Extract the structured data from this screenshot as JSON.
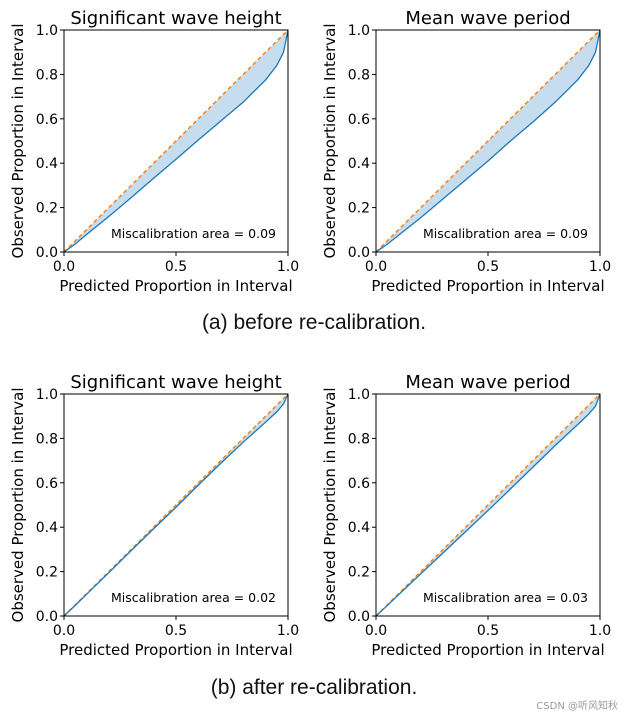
{
  "figure": {
    "caption_top": "(a) before re-calibration.",
    "caption_bottom": "(b) after re-calibration.",
    "watermark": "CSDN @听风知秋"
  },
  "colors": {
    "curve": "#1f77b4",
    "fill": "#c6dcef",
    "ideal": "#ff7f0e"
  },
  "chart_data": [
    {
      "type": "area",
      "title": "Significant wave height",
      "xlabel": "Predicted Proportion in Interval",
      "ylabel": "Observed Proportion in Interval",
      "xlim": [
        0,
        1
      ],
      "ylim": [
        0,
        1
      ],
      "xticks": [
        "0.0",
        "0.5",
        "1.0"
      ],
      "yticks": [
        "0.0",
        "0.2",
        "0.4",
        "0.6",
        "0.8",
        "1.0"
      ],
      "annotation": "Miscalibration area = 0.09",
      "ideal": {
        "name": "ideal",
        "x": [
          0,
          1
        ],
        "y": [
          0,
          1
        ]
      },
      "series": [
        {
          "name": "observed",
          "x": [
            0,
            0.05,
            0.1,
            0.2,
            0.3,
            0.4,
            0.5,
            0.6,
            0.7,
            0.8,
            0.9,
            0.95,
            0.98,
            1.0
          ],
          "y": [
            0,
            0.036,
            0.078,
            0.16,
            0.245,
            0.332,
            0.418,
            0.505,
            0.59,
            0.675,
            0.775,
            0.84,
            0.9,
            1.0
          ]
        }
      ]
    },
    {
      "type": "area",
      "title": "Mean wave period",
      "xlabel": "Predicted Proportion in Interval",
      "ylabel": "Observed Proportion in Interval",
      "xlim": [
        0,
        1
      ],
      "ylim": [
        0,
        1
      ],
      "xticks": [
        "0.0",
        "0.5",
        "1.0"
      ],
      "yticks": [
        "0.0",
        "0.2",
        "0.4",
        "0.6",
        "0.8",
        "1.0"
      ],
      "annotation": "Miscalibration area = 0.09",
      "ideal": {
        "name": "ideal",
        "x": [
          0,
          1
        ],
        "y": [
          0,
          1
        ]
      },
      "series": [
        {
          "name": "observed",
          "x": [
            0,
            0.05,
            0.1,
            0.2,
            0.3,
            0.4,
            0.5,
            0.6,
            0.7,
            0.8,
            0.9,
            0.95,
            0.98,
            1.0
          ],
          "y": [
            0,
            0.035,
            0.075,
            0.155,
            0.24,
            0.325,
            0.41,
            0.5,
            0.585,
            0.675,
            0.775,
            0.84,
            0.9,
            1.0
          ]
        }
      ]
    },
    {
      "type": "area",
      "title": "Significant wave height",
      "xlabel": "Predicted Proportion in Interval",
      "ylabel": "Observed Proportion in Interval",
      "xlim": [
        0,
        1
      ],
      "ylim": [
        0,
        1
      ],
      "xticks": [
        "0.0",
        "0.5",
        "1.0"
      ],
      "yticks": [
        "0.0",
        "0.2",
        "0.4",
        "0.6",
        "0.8",
        "1.0"
      ],
      "annotation": "Miscalibration area = 0.02",
      "ideal": {
        "name": "ideal",
        "x": [
          0,
          1
        ],
        "y": [
          0,
          1
        ]
      },
      "series": [
        {
          "name": "observed",
          "x": [
            0,
            0.05,
            0.1,
            0.2,
            0.3,
            0.4,
            0.5,
            0.6,
            0.7,
            0.8,
            0.9,
            0.95,
            0.98,
            1.0
          ],
          "y": [
            0,
            0.048,
            0.097,
            0.195,
            0.295,
            0.393,
            0.49,
            0.59,
            0.688,
            0.783,
            0.873,
            0.92,
            0.955,
            1.0
          ]
        }
      ]
    },
    {
      "type": "area",
      "title": "Mean wave period",
      "xlabel": "Predicted Proportion in Interval",
      "ylabel": "Observed Proportion in Interval",
      "xlim": [
        0,
        1
      ],
      "ylim": [
        0,
        1
      ],
      "xticks": [
        "0.0",
        "0.5",
        "1.0"
      ],
      "yticks": [
        "0.0",
        "0.2",
        "0.4",
        "0.6",
        "0.8",
        "1.0"
      ],
      "annotation": "Miscalibration area = 0.03",
      "ideal": {
        "name": "ideal",
        "x": [
          0,
          1
        ],
        "y": [
          0,
          1
        ]
      },
      "series": [
        {
          "name": "observed",
          "x": [
            0,
            0.05,
            0.1,
            0.2,
            0.3,
            0.4,
            0.5,
            0.6,
            0.7,
            0.8,
            0.9,
            0.95,
            0.98,
            1.0
          ],
          "y": [
            0,
            0.047,
            0.095,
            0.19,
            0.285,
            0.38,
            0.475,
            0.572,
            0.67,
            0.768,
            0.862,
            0.91,
            0.945,
            1.0
          ]
        }
      ]
    }
  ]
}
